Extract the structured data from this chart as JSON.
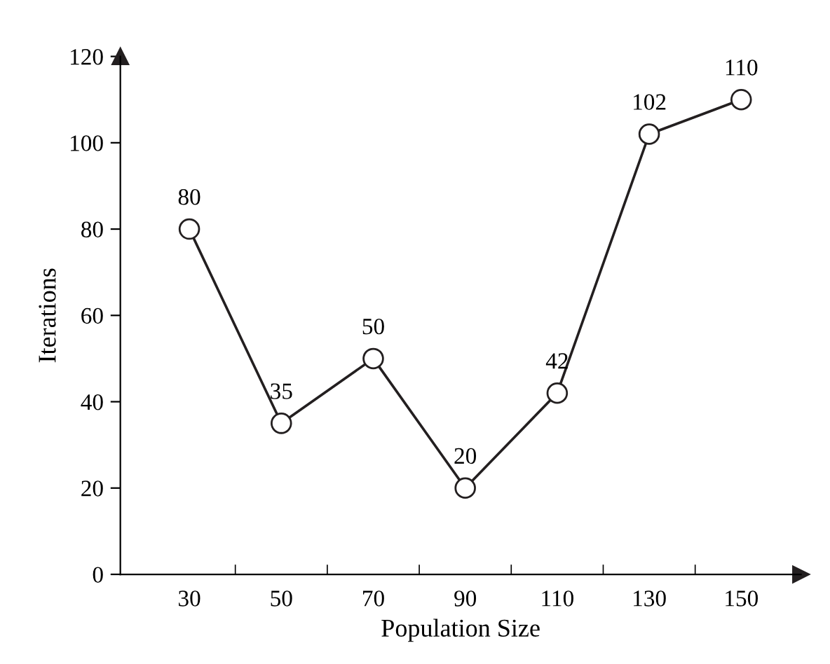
{
  "chart_data": {
    "type": "line",
    "xlabel": "Population Size",
    "ylabel": "Iterations",
    "categories": [
      "30",
      "50",
      "70",
      "90",
      "110",
      "130",
      "150"
    ],
    "series": [
      {
        "color": "#231f20",
        "values": [
          80,
          35,
          50,
          20,
          42,
          102,
          110
        ]
      }
    ],
    "ylim": [
      0,
      120
    ],
    "yticks": [
      0,
      20,
      40,
      60,
      80,
      100,
      120
    ],
    "marker": "circle",
    "line_style": "solid",
    "data_labels": true,
    "grid": false,
    "legend": false
  }
}
